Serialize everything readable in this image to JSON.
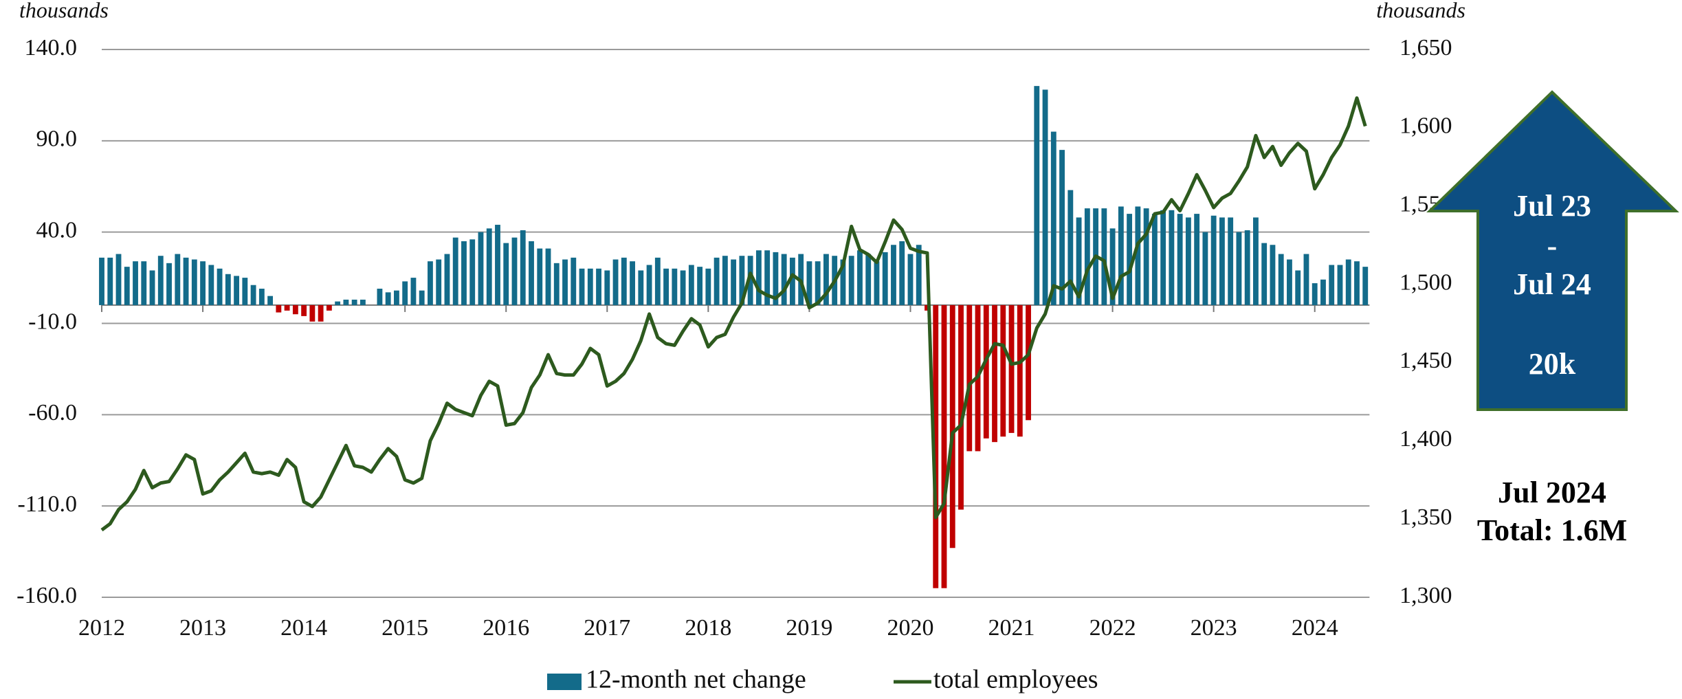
{
  "chart_data": {
    "type": "bar",
    "y_label": "thousands",
    "y2_label": "thousands",
    "categories": [
      "2012",
      null,
      null,
      null,
      null,
      null,
      null,
      null,
      null,
      null,
      null,
      null,
      "2013",
      null,
      null,
      null,
      null,
      null,
      null,
      null,
      null,
      null,
      null,
      null,
      "2014",
      null,
      null,
      null,
      null,
      null,
      null,
      null,
      null,
      null,
      null,
      null,
      "2015",
      null,
      null,
      null,
      null,
      null,
      null,
      null,
      null,
      null,
      null,
      null,
      "2016",
      null,
      null,
      null,
      null,
      null,
      null,
      null,
      null,
      null,
      null,
      null,
      "2017",
      null,
      null,
      null,
      null,
      null,
      null,
      null,
      null,
      null,
      null,
      null,
      "2018",
      null,
      null,
      null,
      null,
      null,
      null,
      null,
      null,
      null,
      null,
      null,
      "2019",
      null,
      null,
      null,
      null,
      null,
      null,
      null,
      null,
      null,
      null,
      null,
      "2020",
      null,
      null,
      null,
      null,
      null,
      null,
      null,
      null,
      null,
      null,
      null,
      "2021",
      null,
      null,
      null,
      null,
      null,
      null,
      null,
      null,
      null,
      null,
      null,
      "2022",
      null,
      null,
      null,
      null,
      null,
      null,
      null,
      null,
      null,
      null,
      null,
      "2023",
      null,
      null,
      null,
      null,
      null,
      null,
      null,
      null,
      null,
      null,
      null,
      "2024",
      null,
      null,
      null,
      null,
      null,
      null
    ],
    "series": [
      {
        "name": "12-month net change",
        "type": "bar",
        "color": "#136b8a",
        "negative_color": "#c00000",
        "values": [
          26,
          26,
          28,
          21,
          24,
          24,
          19,
          27,
          23,
          28,
          26,
          25,
          24,
          22,
          20,
          17,
          16,
          15,
          11,
          9,
          5,
          -4,
          -3,
          -5,
          -6,
          -9,
          -9,
          -3,
          2,
          3,
          3,
          3,
          0,
          9,
          7,
          8,
          13,
          15,
          8,
          24,
          25,
          28,
          37,
          35,
          36,
          40,
          42,
          44,
          34,
          37,
          41,
          35,
          31,
          31,
          23,
          25,
          26,
          20,
          20,
          20,
          19,
          25,
          26,
          24,
          19,
          22,
          26,
          20,
          20,
          19,
          22,
          21,
          20,
          26,
          27,
          25,
          27,
          27,
          30,
          30,
          29,
          28,
          26,
          28,
          24,
          24,
          28,
          27,
          25,
          27,
          30,
          28,
          24,
          29,
          33,
          35,
          28,
          33,
          -3,
          -155,
          -155,
          -133,
          -112,
          -80,
          -80,
          -73,
          -75,
          -72,
          -70,
          -72,
          -63,
          120,
          118,
          95,
          85,
          63,
          48,
          53,
          53,
          53,
          42,
          54,
          50,
          54,
          53,
          50,
          52,
          52,
          50,
          48,
          50,
          40,
          49,
          48,
          48,
          40,
          41,
          48,
          34,
          33,
          28,
          25,
          19,
          28,
          12,
          14,
          22,
          22,
          25,
          24,
          21
        ]
      },
      {
        "name": "total employees",
        "type": "line",
        "axis": "y2",
        "color": "#2d5a1e",
        "values": [
          1343,
          1347,
          1356,
          1361,
          1369,
          1381,
          1370,
          1373,
          1374,
          1382,
          1391,
          1388,
          1366,
          1368,
          1375,
          1380,
          1386,
          1392,
          1380,
          1379,
          1380,
          1378,
          1388,
          1383,
          1361,
          1358,
          1364,
          1375,
          1386,
          1397,
          1384,
          1383,
          1380,
          1388,
          1395,
          1390,
          1375,
          1373,
          1376,
          1400,
          1411,
          1424,
          1420,
          1418,
          1416,
          1429,
          1438,
          1435,
          1410,
          1411,
          1418,
          1434,
          1442,
          1455,
          1443,
          1442,
          1442,
          1449,
          1459,
          1455,
          1435,
          1438,
          1443,
          1452,
          1464,
          1481,
          1466,
          1462,
          1461,
          1470,
          1478,
          1474,
          1460,
          1466,
          1468,
          1479,
          1488,
          1507,
          1496,
          1493,
          1491,
          1496,
          1506,
          1502,
          1485,
          1488,
          1494,
          1502,
          1512,
          1537,
          1522,
          1519,
          1514,
          1527,
          1541,
          1535,
          1523,
          1521,
          1520,
          1351,
          1360,
          1405,
          1410,
          1436,
          1441,
          1452,
          1462,
          1461,
          1449,
          1450,
          1455,
          1472,
          1481,
          1499,
          1497,
          1502,
          1492,
          1509,
          1518,
          1515,
          1491,
          1505,
          1508,
          1526,
          1532,
          1545,
          1546,
          1554,
          1547,
          1558,
          1570,
          1560,
          1549,
          1555,
          1558,
          1566,
          1575,
          1595,
          1581,
          1588,
          1576,
          1584,
          1590,
          1585,
          1561,
          1570,
          1581,
          1589,
          1601,
          1619,
          1601
        ]
      }
    ],
    "ylim": [
      -160,
      140
    ],
    "yticks": [
      {
        "value": 140,
        "label": "140.0"
      },
      {
        "value": 90,
        "label": "90.0"
      },
      {
        "value": 40,
        "label": "40.0"
      },
      {
        "value": -10,
        "label": "-10.0"
      },
      {
        "value": -60,
        "label": "-60.0"
      },
      {
        "value": -110,
        "label": "-110.0"
      },
      {
        "value": -160,
        "label": "-160.0"
      }
    ],
    "y2lim": [
      1300,
      1650
    ],
    "y2ticks": [
      {
        "value": 1650,
        "label": "1,650"
      },
      {
        "value": 1600,
        "label": "1,600"
      },
      {
        "value": 1550,
        "label": "1,550"
      },
      {
        "value": 1500,
        "label": "1,500"
      },
      {
        "value": 1450,
        "label": "1,450"
      },
      {
        "value": 1400,
        "label": "1,400"
      },
      {
        "value": 1350,
        "label": "1,350"
      },
      {
        "value": 1300,
        "label": "1,300"
      }
    ],
    "grid": true,
    "legend": "bottom",
    "annotations": {
      "arrow_color": "#0d4e82",
      "arrow": [
        "Jul 23",
        "-",
        "Jul 24",
        "20k"
      ],
      "note": [
        "Jul 2024",
        "Total: 1.6M"
      ]
    }
  }
}
